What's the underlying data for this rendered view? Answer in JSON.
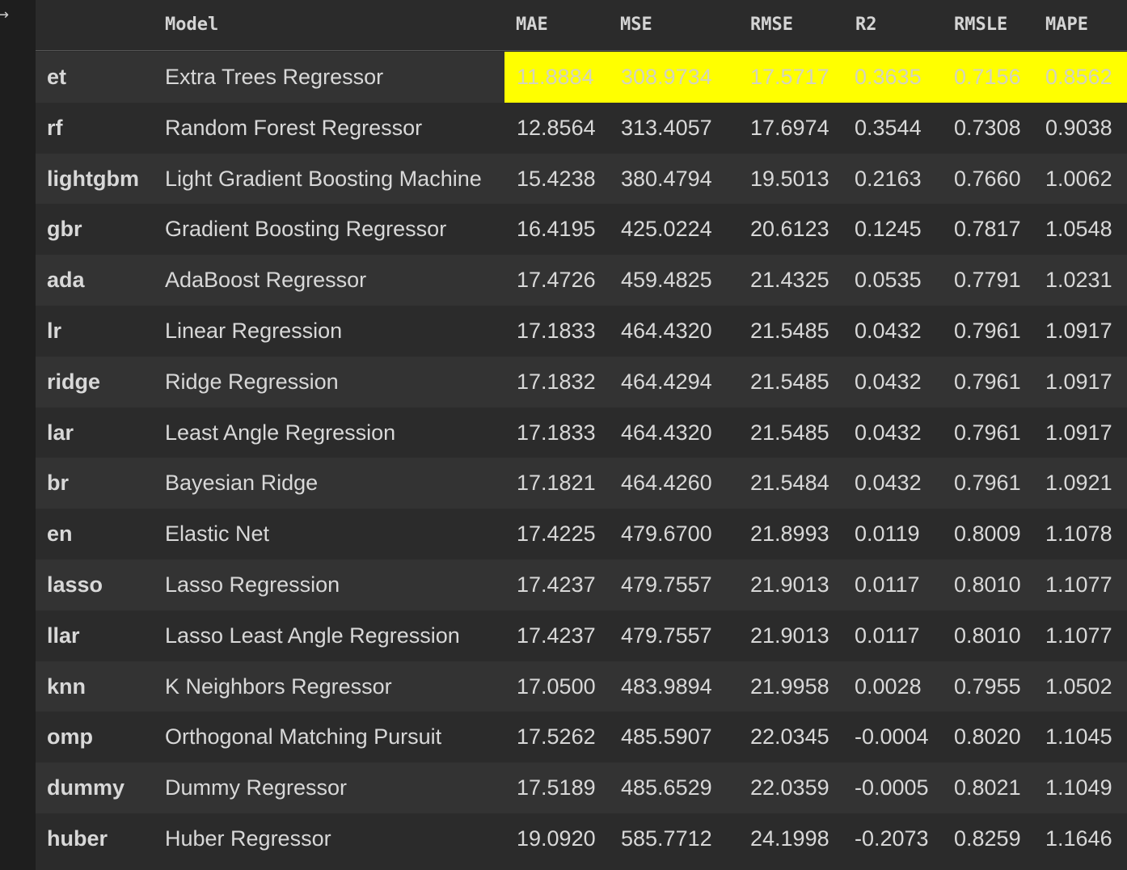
{
  "gutter": {
    "icon": "arrow-right-icon",
    "glyph": "↦"
  },
  "header": {
    "key": "",
    "model": "Model",
    "mae": "MAE",
    "mse": "MSE",
    "rmse": "RMSE",
    "r2": "R2",
    "rmsle": "RMSLE",
    "mape": "MAPE"
  },
  "highlight_color": "#ffff00",
  "rows": [
    {
      "key": "et",
      "model": "Extra Trees Regressor",
      "mae": "11.8884",
      "mse": "308.9734",
      "rmse": "17.5717",
      "r2": "0.3635",
      "rmsle": "0.7156",
      "mape": "0.8562"
    },
    {
      "key": "rf",
      "model": "Random Forest Regressor",
      "mae": "12.8564",
      "mse": "313.4057",
      "rmse": "17.6974",
      "r2": "0.3544",
      "rmsle": "0.7308",
      "mape": "0.9038"
    },
    {
      "key": "lightgbm",
      "model": "Light Gradient Boosting Machine",
      "mae": "15.4238",
      "mse": "380.4794",
      "rmse": "19.5013",
      "r2": "0.2163",
      "rmsle": "0.7660",
      "mape": "1.0062"
    },
    {
      "key": "gbr",
      "model": "Gradient Boosting Regressor",
      "mae": "16.4195",
      "mse": "425.0224",
      "rmse": "20.6123",
      "r2": "0.1245",
      "rmsle": "0.7817",
      "mape": "1.0548"
    },
    {
      "key": "ada",
      "model": "AdaBoost Regressor",
      "mae": "17.4726",
      "mse": "459.4825",
      "rmse": "21.4325",
      "r2": "0.0535",
      "rmsle": "0.7791",
      "mape": "1.0231"
    },
    {
      "key": "lr",
      "model": "Linear Regression",
      "mae": "17.1833",
      "mse": "464.4320",
      "rmse": "21.5485",
      "r2": "0.0432",
      "rmsle": "0.7961",
      "mape": "1.0917"
    },
    {
      "key": "ridge",
      "model": "Ridge Regression",
      "mae": "17.1832",
      "mse": "464.4294",
      "rmse": "21.5485",
      "r2": "0.0432",
      "rmsle": "0.7961",
      "mape": "1.0917"
    },
    {
      "key": "lar",
      "model": "Least Angle Regression",
      "mae": "17.1833",
      "mse": "464.4320",
      "rmse": "21.5485",
      "r2": "0.0432",
      "rmsle": "0.7961",
      "mape": "1.0917"
    },
    {
      "key": "br",
      "model": "Bayesian Ridge",
      "mae": "17.1821",
      "mse": "464.4260",
      "rmse": "21.5484",
      "r2": "0.0432",
      "rmsle": "0.7961",
      "mape": "1.0921"
    },
    {
      "key": "en",
      "model": "Elastic Net",
      "mae": "17.4225",
      "mse": "479.6700",
      "rmse": "21.8993",
      "r2": "0.0119",
      "rmsle": "0.8009",
      "mape": "1.1078"
    },
    {
      "key": "lasso",
      "model": "Lasso Regression",
      "mae": "17.4237",
      "mse": "479.7557",
      "rmse": "21.9013",
      "r2": "0.0117",
      "rmsle": "0.8010",
      "mape": "1.1077"
    },
    {
      "key": "llar",
      "model": "Lasso Least Angle Regression",
      "mae": "17.4237",
      "mse": "479.7557",
      "rmse": "21.9013",
      "r2": "0.0117",
      "rmsle": "0.8010",
      "mape": "1.1077"
    },
    {
      "key": "knn",
      "model": "K Neighbors Regressor",
      "mae": "17.0500",
      "mse": "483.9894",
      "rmse": "21.9958",
      "r2": "0.0028",
      "rmsle": "0.7955",
      "mape": "1.0502"
    },
    {
      "key": "omp",
      "model": "Orthogonal Matching Pursuit",
      "mae": "17.5262",
      "mse": "485.5907",
      "rmse": "22.0345",
      "r2": "-0.0004",
      "rmsle": "0.8020",
      "mape": "1.1045"
    },
    {
      "key": "dummy",
      "model": "Dummy Regressor",
      "mae": "17.5189",
      "mse": "485.6529",
      "rmse": "22.0359",
      "r2": "-0.0005",
      "rmsle": "0.8021",
      "mape": "1.1049"
    },
    {
      "key": "huber",
      "model": "Huber Regressor",
      "mae": "19.0920",
      "mse": "585.7712",
      "rmse": "24.1998",
      "r2": "-0.2073",
      "rmsle": "0.8259",
      "mape": "1.1646"
    }
  ]
}
